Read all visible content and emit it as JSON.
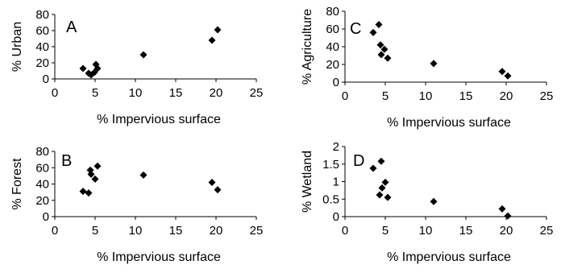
{
  "chart_data": [
    {
      "type": "scatter",
      "panel_label": "A",
      "xlabel": "% Impervious surface",
      "ylabel": "% Urban",
      "xlim": [
        0,
        25
      ],
      "ylim": [
        0,
        80
      ],
      "xticks": [
        "0",
        "5",
        "10",
        "15",
        "20",
        "25"
      ],
      "yticks": [
        "0",
        "20",
        "40",
        "60",
        "80"
      ],
      "x": [
        3.5,
        4.2,
        4.5,
        4.9,
        5.1,
        5.3,
        11.0,
        19.5,
        20.2
      ],
      "y": [
        13,
        7,
        5,
        8,
        18,
        13,
        30,
        48,
        61
      ],
      "marker": "diamond",
      "color": "#000000",
      "grid": false
    },
    {
      "type": "scatter",
      "panel_label": "B",
      "xlabel": "% Impervious surface",
      "ylabel": "% Forest",
      "xlim": [
        0,
        25
      ],
      "ylim": [
        0,
        80
      ],
      "xticks": [
        "0",
        "5",
        "10",
        "15",
        "20",
        "25"
      ],
      "yticks": [
        "0",
        "20",
        "40",
        "60",
        "80"
      ],
      "x": [
        3.5,
        4.2,
        4.4,
        4.5,
        5.0,
        5.3,
        11.0,
        19.5,
        20.2
      ],
      "y": [
        31,
        29,
        57,
        52,
        46,
        62,
        51,
        42,
        33
      ],
      "marker": "diamond",
      "color": "#000000",
      "grid": false
    },
    {
      "type": "scatter",
      "panel_label": "C",
      "xlabel": "% Impervious surface",
      "ylabel": "% Agriculture",
      "xlim": [
        0,
        25
      ],
      "ylim": [
        0,
        80
      ],
      "xticks": [
        "0",
        "5",
        "10",
        "15",
        "20",
        "25"
      ],
      "yticks": [
        "0",
        "20",
        "40",
        "60",
        "80"
      ],
      "x": [
        3.5,
        4.2,
        4.4,
        4.5,
        4.9,
        5.3,
        11.0,
        19.5,
        20.2
      ],
      "y": [
        56,
        65,
        42,
        31,
        37,
        27,
        21,
        12,
        7
      ],
      "marker": "diamond",
      "color": "#000000",
      "grid": false
    },
    {
      "type": "scatter",
      "panel_label": "D",
      "xlabel": "% Impervious surface",
      "ylabel": "% Wetland",
      "xlim": [
        0,
        25
      ],
      "ylim": [
        0,
        2
      ],
      "xticks": [
        "0",
        "5",
        "10",
        "15",
        "20",
        "25"
      ],
      "yticks": [
        "0",
        "0.5",
        "1",
        "1.5",
        "2"
      ],
      "x": [
        3.5,
        4.3,
        4.5,
        4.6,
        5.0,
        5.3,
        11.0,
        19.5,
        20.2
      ],
      "y": [
        1.38,
        0.62,
        1.58,
        0.82,
        0.98,
        0.55,
        0.43,
        0.22,
        0.02
      ],
      "marker": "diamond",
      "color": "#000000",
      "grid": false
    }
  ]
}
